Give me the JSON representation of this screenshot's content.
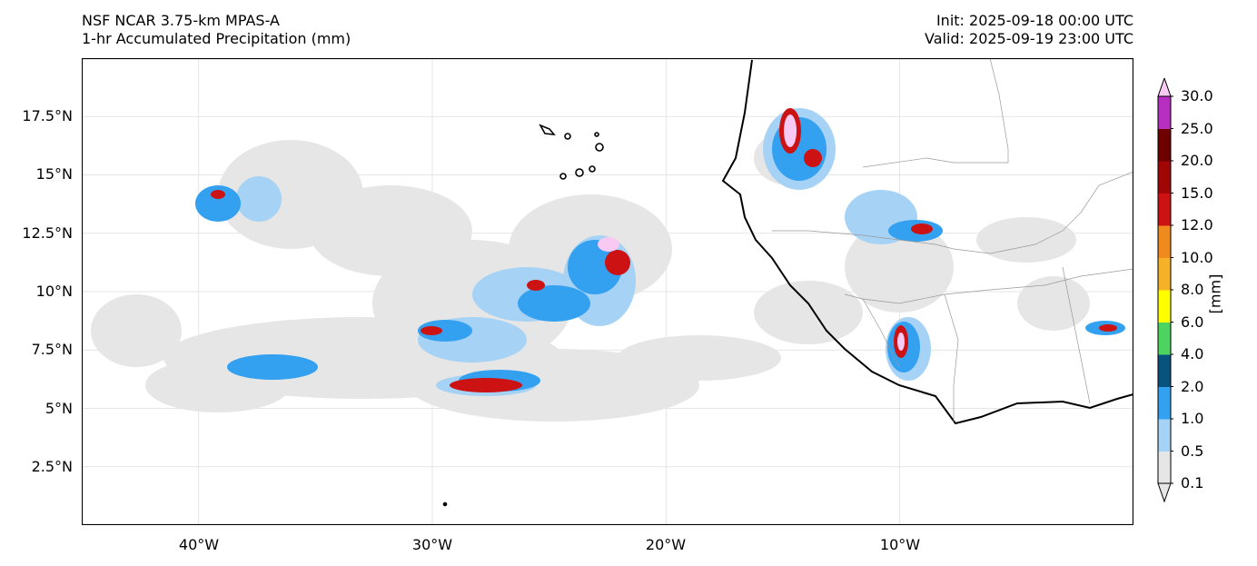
{
  "header": {
    "model": "NSF NCAR 3.75-km MPAS-A",
    "field": "1-hr Accumulated Precipitation (mm)",
    "init": "Init: 2025-09-18 00:00 UTC",
    "valid": "Valid: 2025-09-19 23:00 UTC"
  },
  "map": {
    "lon_range": [
      -45,
      0
    ],
    "lat_range": [
      0,
      20
    ],
    "lat_ticks": [
      {
        "value": 17.5,
        "label": "17.5°N"
      },
      {
        "value": 15,
        "label": "15°N"
      },
      {
        "value": 12.5,
        "label": "12.5°N"
      },
      {
        "value": 10,
        "label": "10°N"
      },
      {
        "value": 7.5,
        "label": "7.5°N"
      },
      {
        "value": 5,
        "label": "5°N"
      },
      {
        "value": 2.5,
        "label": "2.5°N"
      }
    ],
    "lon_ticks": [
      {
        "value": -40,
        "label": "40°W"
      },
      {
        "value": -30,
        "label": "30°W"
      },
      {
        "value": -20,
        "label": "20°W"
      },
      {
        "value": -10,
        "label": "10°W"
      }
    ],
    "gridlines": true,
    "coastline_color": "#000000",
    "border_color": "#999999"
  },
  "colorbar": {
    "label": "[mm]",
    "levels": [
      "0.1",
      "0.5",
      "1.0",
      "2.0",
      "4.0",
      "6.0",
      "8.0",
      "10.0",
      "12.0",
      "15.0",
      "20.0",
      "25.0",
      "30.0"
    ],
    "colors": [
      "#e6e6e6",
      "#a6d3f5",
      "#33a0f0",
      "#07527e",
      "#4dd360",
      "#ffff00",
      "#f5b229",
      "#ee8a1e",
      "#cc1212",
      "#a00606",
      "#6e0000",
      "#b62fc0",
      "#f7c9f3"
    ],
    "extend": "both"
  }
}
